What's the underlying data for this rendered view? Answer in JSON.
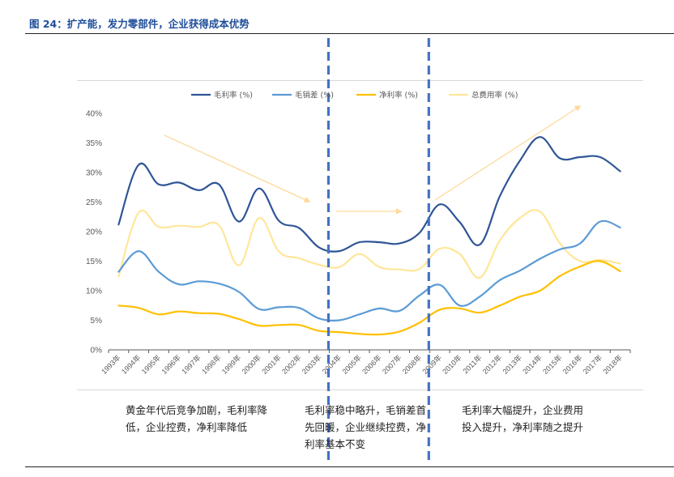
{
  "figure": {
    "title": "图 24：扩产能，发力零部件，企业获得成本优势"
  },
  "annotations": [
    "黄金年代后竞争加剧，毛利率降低，企业控费，净利率降低",
    "毛利率稳中略升，毛销差首先回暖，企业继续控费，净利率基本不变",
    "毛利率大幅提升，企业费用投入提升，净利率随之提升"
  ],
  "chart_data": {
    "type": "line",
    "categories": [
      "1993年",
      "1994年",
      "1995年",
      "1996年",
      "1997年",
      "1998年",
      "1999年",
      "2000年",
      "2001年",
      "2002年",
      "2003年",
      "2004年",
      "2005年",
      "2006年",
      "2007年",
      "2008年",
      "2009年",
      "2010年",
      "2011年",
      "2012年",
      "2013年",
      "2014年",
      "2015年",
      "2016年",
      "2017年",
      "2018年"
    ],
    "ylim": [
      0,
      40
    ],
    "yticks": [
      "0%",
      "5%",
      "10%",
      "15%",
      "20%",
      "25%",
      "30%",
      "35%",
      "40%"
    ],
    "y_unit": "%",
    "grid": false,
    "smooth": true,
    "legend_position": "top",
    "series": [
      {
        "name": "毛利率 (%)",
        "color": "#2f5597",
        "values": [
          21.2,
          31.3,
          28.0,
          28.3,
          27.0,
          28.0,
          21.7,
          27.3,
          21.8,
          20.6,
          17.3,
          16.7,
          18.2,
          18.2,
          18.0,
          19.8,
          24.6,
          21.6,
          17.8,
          26.0,
          32.0,
          36.0,
          32.4,
          32.6,
          32.6,
          30.2
        ]
      },
      {
        "name": "毛销差 (%)",
        "color": "#5b9bd5",
        "values": [
          13.2,
          16.7,
          13.2,
          11.1,
          11.6,
          11.2,
          9.8,
          6.9,
          7.2,
          7.1,
          5.3,
          5.0,
          6.0,
          7.0,
          6.6,
          9.2,
          11.0,
          7.5,
          9.0,
          11.8,
          13.4,
          15.4,
          17.0,
          18.0,
          21.7,
          20.7
        ]
      },
      {
        "name": "净利率 (%)",
        "color": "#ffc000",
        "values": [
          7.5,
          7.1,
          6.0,
          6.5,
          6.2,
          6.1,
          5.2,
          4.1,
          4.2,
          4.2,
          3.2,
          3.0,
          2.7,
          2.6,
          3.1,
          4.6,
          6.8,
          7.0,
          6.3,
          7.5,
          9.0,
          10.0,
          12.5,
          14.1,
          15.0,
          13.3
        ]
      },
      {
        "name": "总费用率 (%)",
        "color": "#ffe699",
        "values": [
          12.4,
          23.2,
          20.8,
          21.0,
          20.8,
          21.1,
          14.3,
          22.3,
          16.6,
          15.5,
          14.4,
          14.0,
          16.2,
          14.0,
          13.6,
          13.7,
          17.1,
          16.2,
          12.2,
          18.5,
          22.3,
          23.4,
          18.0,
          15.0,
          15.2,
          14.6
        ]
      }
    ],
    "dividers_after_category": [
      "2003年",
      "2008年"
    ],
    "divider_color": "#4472c4",
    "trend_arrow_color": "#fdd99a"
  }
}
